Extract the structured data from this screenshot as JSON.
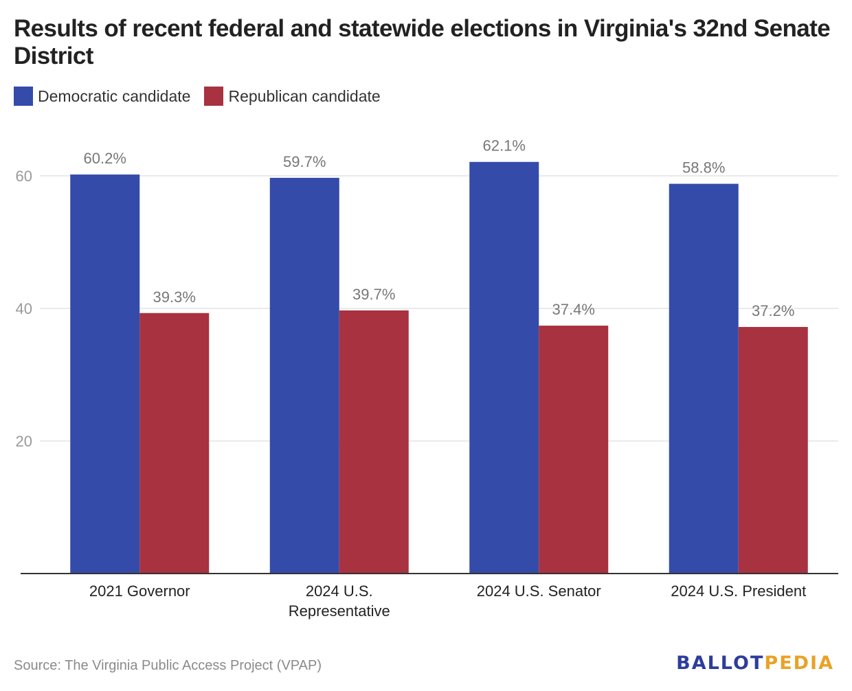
{
  "title": "Results of recent federal and statewide elections in Virginia's 32nd Senate District",
  "legend": [
    {
      "label": "Democratic candidate",
      "color": "#344ba9"
    },
    {
      "label": "Republican candidate",
      "color": "#a83240"
    }
  ],
  "source": "Source: The Virginia Public Access Project (VPAP)",
  "logo": {
    "part1": "BALLOT",
    "part2": "PEDIA"
  },
  "chart_data": {
    "type": "bar",
    "title": "Results of recent federal and statewide elections in Virginia's 32nd Senate District",
    "categories": [
      [
        "2021 Governor"
      ],
      [
        "2024 U.S.",
        "Representative"
      ],
      [
        "2024 U.S. Senator"
      ],
      [
        "2024 U.S. President"
      ]
    ],
    "series": [
      {
        "name": "Democratic candidate",
        "color": "#344ba9",
        "values": [
          60.2,
          59.7,
          62.1,
          58.8
        ],
        "labels": [
          "60.2%",
          "59.7%",
          "62.1%",
          "58.8%"
        ]
      },
      {
        "name": "Republican candidate",
        "color": "#a83240",
        "values": [
          39.3,
          39.7,
          37.4,
          37.2
        ],
        "labels": [
          "39.3%",
          "39.7%",
          "37.4%",
          "37.2%"
        ]
      }
    ],
    "yticks": [
      20,
      40,
      60
    ],
    "ylim": [
      0,
      60
    ],
    "grid": true,
    "legend_position": "top-left"
  }
}
